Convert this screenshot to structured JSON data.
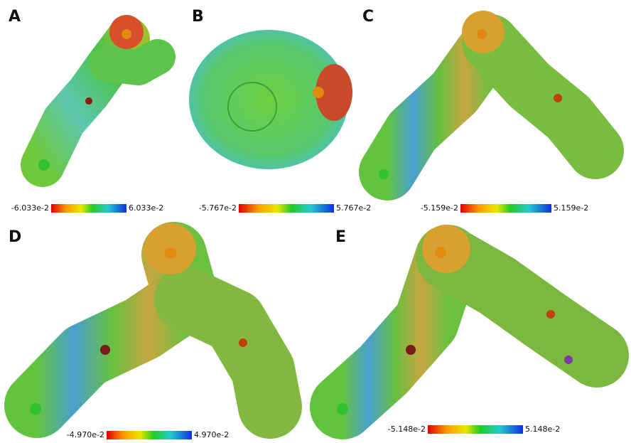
{
  "panels": [
    {
      "label": "A",
      "min": "-6.033e-2",
      "max": "6.033e-2"
    },
    {
      "label": "B",
      "min": "-5.767e-2",
      "max": "5.767e-2"
    },
    {
      "label": "C",
      "min": "-5.159e-2",
      "max": "5.159e-2"
    },
    {
      "label": "D",
      "min": "-4.970e-2",
      "max": "4.970e-2"
    },
    {
      "label": "E",
      "min": "-5.148e-2",
      "max": "5.148e-2"
    }
  ]
}
